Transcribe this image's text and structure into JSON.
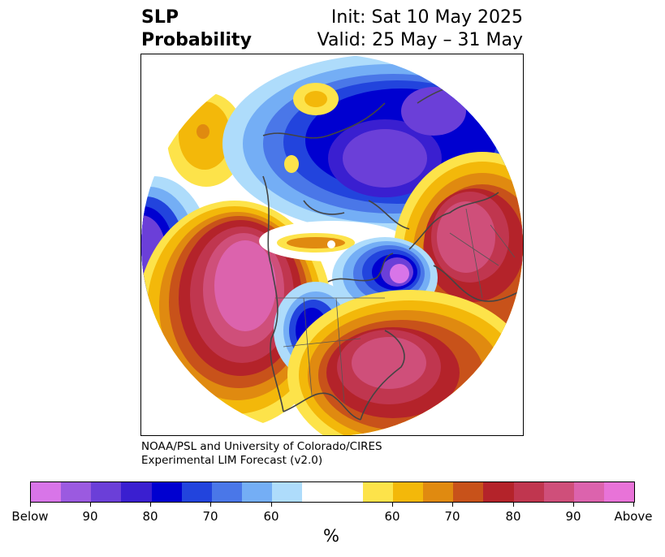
{
  "title": {
    "left_line1": "SLP",
    "left_line2": "Probability",
    "right_line1": "Init: Sat 10 May 2025",
    "right_line2": "Valid: 25 May – 31 May"
  },
  "credit": {
    "line1": "NOAA/PSL and University of Colorado/CIRES",
    "line2": "Experimental LIM Forecast (v2.0)"
  },
  "colorbar": {
    "units": "%",
    "colors": [
      "#d875e8",
      "#9b5ae0",
      "#6b3fd8",
      "#3a1fd0",
      "#0000d0",
      "#2244dd",
      "#4a77e8",
      "#74aef5",
      "#aedcfb",
      "#ffffff",
      "#ffffff",
      "#fde34a",
      "#f3b80a",
      "#e08a10",
      "#c8521a",
      "#b4232a",
      "#c0364f",
      "#cf4f7a",
      "#dc63ad",
      "#e873d8"
    ],
    "tick_labels": [
      "Below",
      "90",
      "80",
      "70",
      "60",
      "60",
      "70",
      "80",
      "90",
      "Above"
    ]
  }
}
